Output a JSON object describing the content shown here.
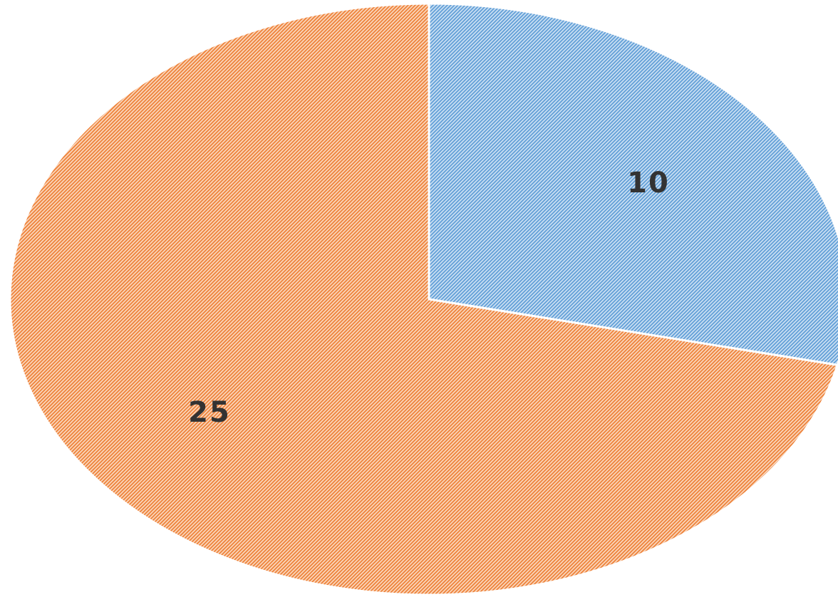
{
  "chart_data": {
    "type": "pie",
    "categories": [
      null,
      null
    ],
    "values": [
      10,
      25
    ],
    "colors": [
      "#5b9bd5",
      "#ed7d31"
    ],
    "pattern": "diagonal-hatch"
  }
}
